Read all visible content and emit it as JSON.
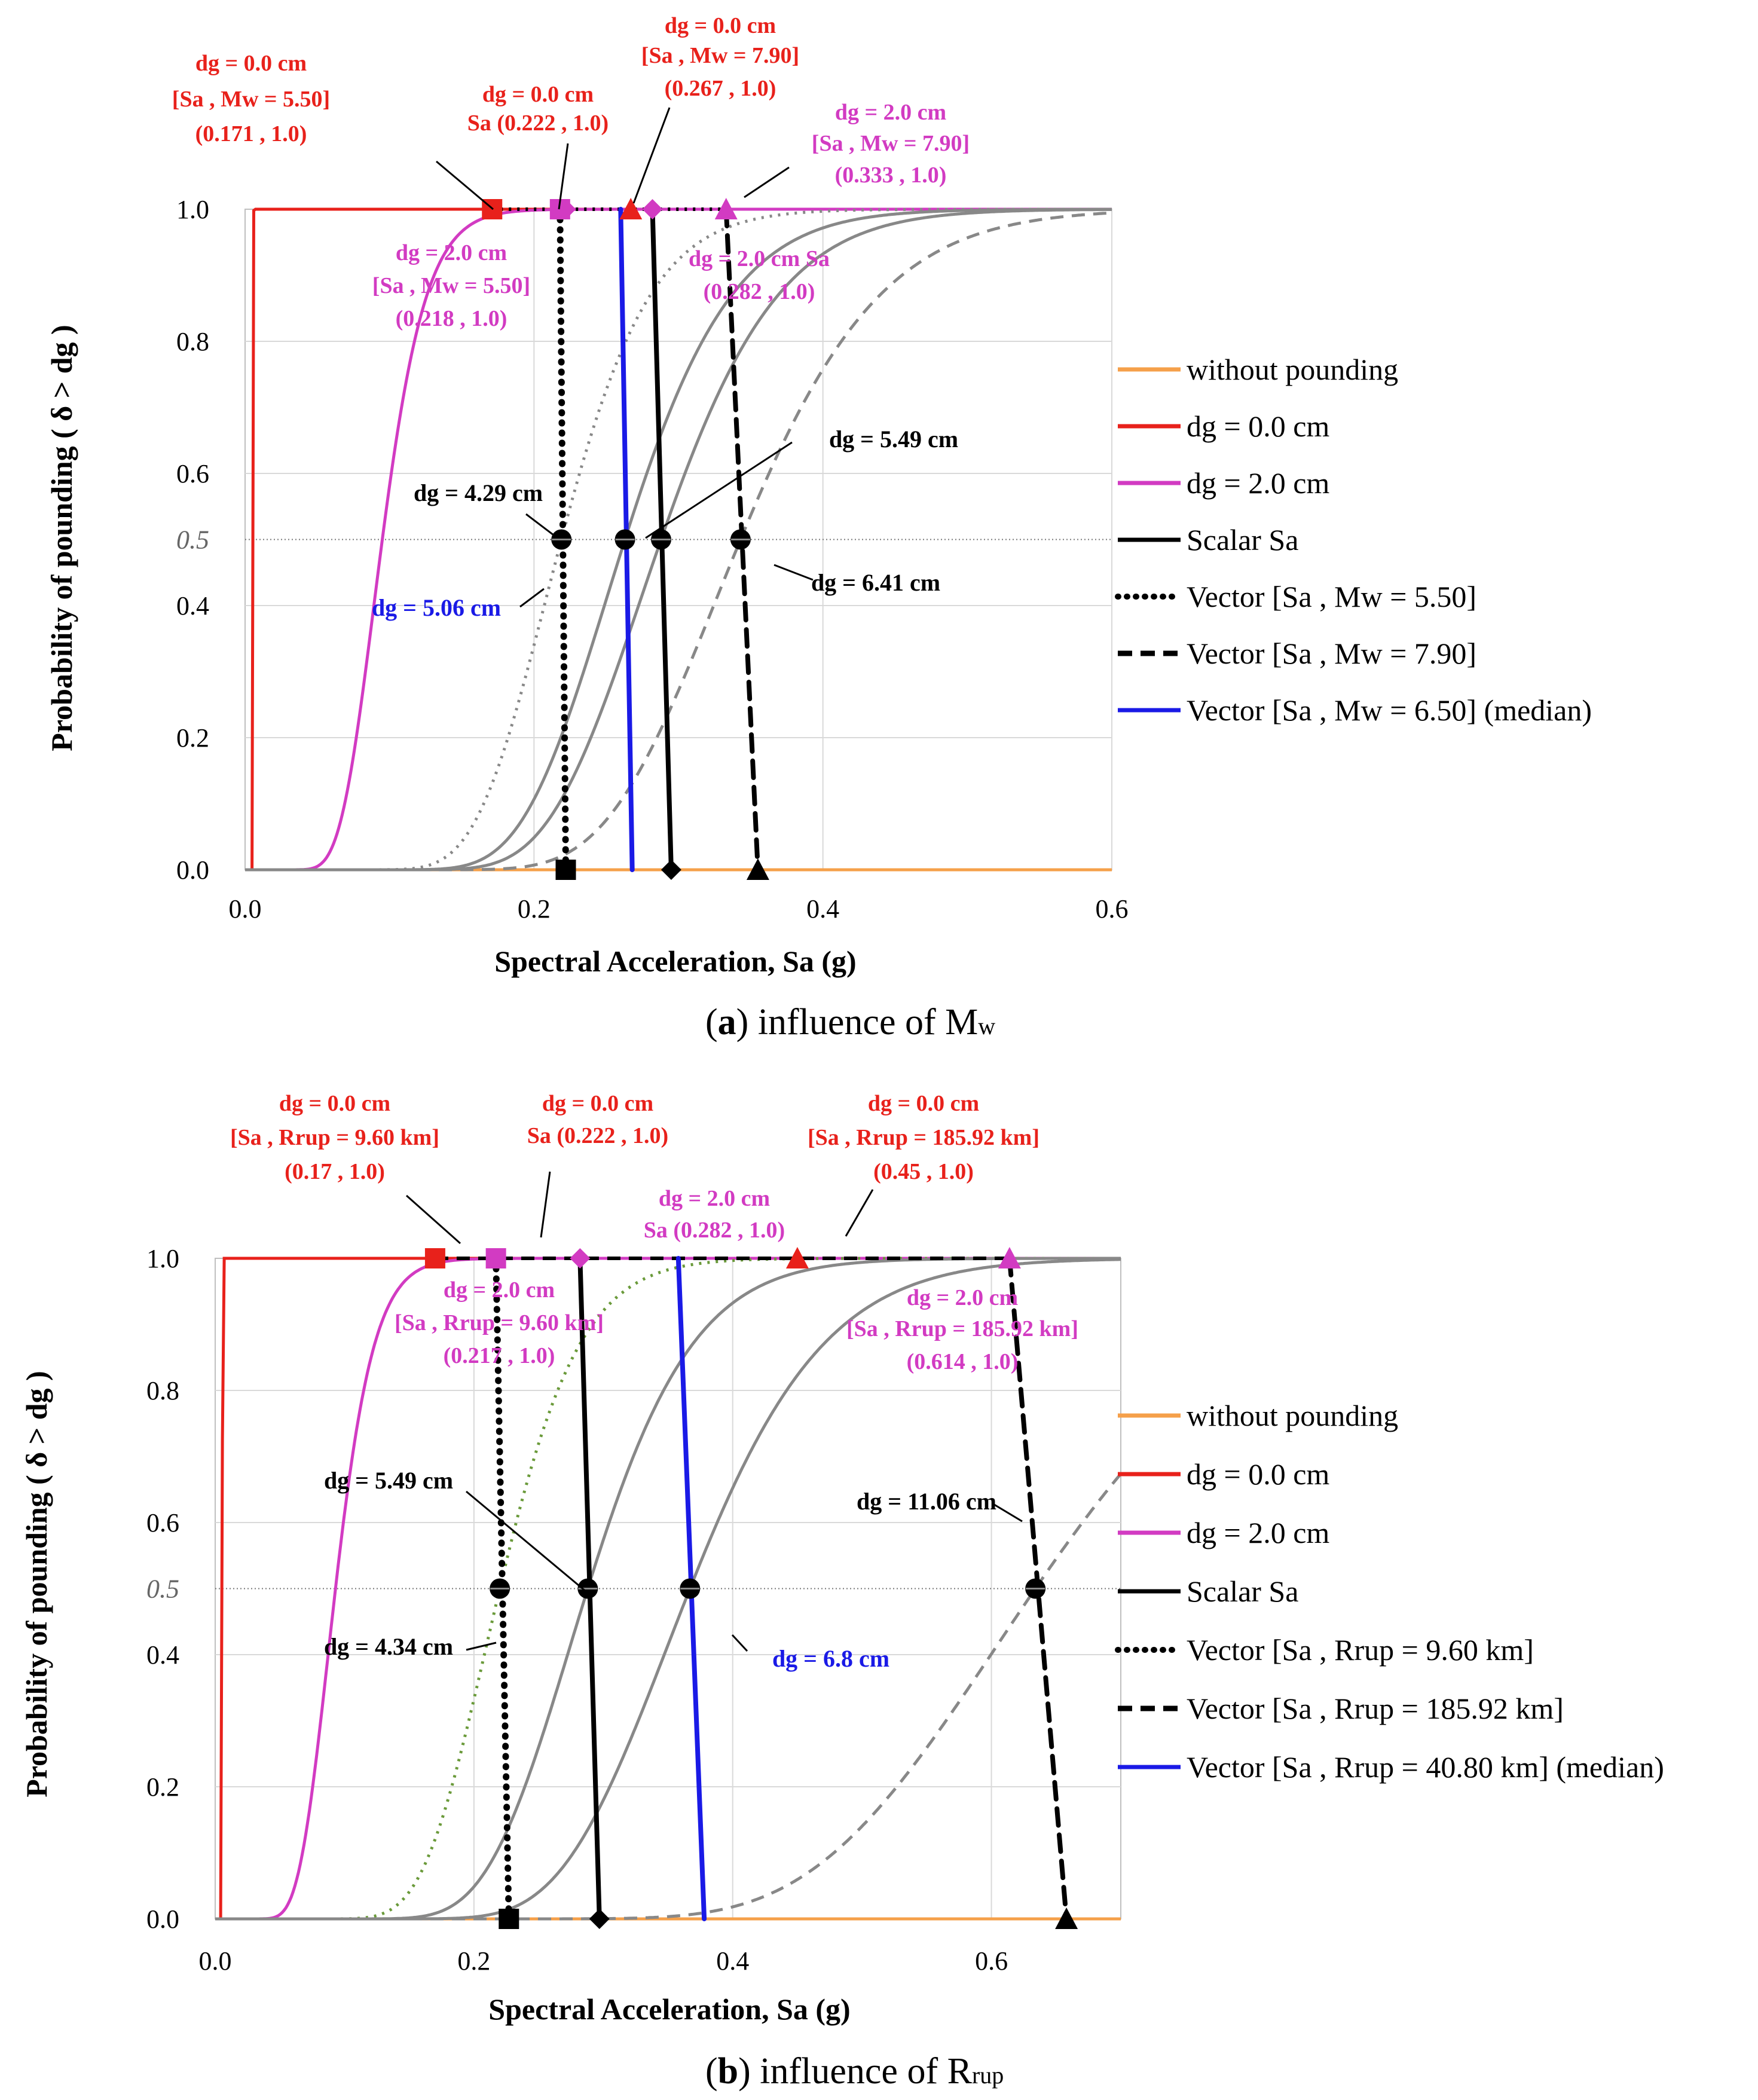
{
  "chart_data": [
    {
      "type": "line",
      "caption_bold": "a",
      "caption_text": "influence of M",
      "caption_sub": "w",
      "xlabel": "Spectral Acceleration, Sa (g)",
      "ylabel": "Probability of pounding ( δ > dg )",
      "xlim": [
        0,
        0.6
      ],
      "ylim": [
        0,
        1
      ],
      "xticks": [
        0,
        0.2,
        0.4,
        0.6
      ],
      "xtick_labels": [
        "0.0",
        "0.2",
        "0.4",
        "0.6"
      ],
      "yticks": [
        0,
        0.2,
        0.4,
        0.5,
        0.6,
        0.8,
        1.0
      ],
      "ytick_labels": [
        "0.0",
        "0.2",
        "0.4",
        "0.5",
        "0.6",
        "0.8",
        "1.0"
      ],
      "grid": true,
      "legend": [
        {
          "label": "without pounding",
          "color": "#f5a04a",
          "dash": "solid"
        },
        {
          "label": " dg = 0.0 cm",
          "color": "#e8211b",
          "dash": "solid"
        },
        {
          "label": "dg = 2.0 cm",
          "color": "#d23bc2",
          "dash": "solid"
        },
        {
          "label": "Scalar Sa",
          "color": "#000000",
          "dash": "solid"
        },
        {
          "label": "Vector [Sa , Mw = 5.50]",
          "color": "#000000",
          "dash": "dot"
        },
        {
          "label": "Vector [Sa , Mw = 7.90]",
          "color": "#000000",
          "dash": "dash"
        },
        {
          "label": "Vector [Sa , Mw = 6.50] (median)",
          "color": "#1a1ae6",
          "dash": "solid"
        }
      ],
      "fragility_curves": [
        {
          "name": "without pounding",
          "median": null,
          "color": "#f5a04a",
          "style": "solid",
          "constant": 0
        },
        {
          "name": "dg = 0.0 cm",
          "median": 0.0055,
          "beta": 0.03,
          "color": "#e8211b",
          "style": "solid"
        },
        {
          "name": "dg = 2.0 cm",
          "median": 0.095,
          "beta": 0.25,
          "color": "#d23bc2",
          "style": "solid"
        },
        {
          "name": "Vector [Sa , Mw = 5.50] dg = 4.29 cm",
          "median": 0.219,
          "beta": 0.22,
          "color": "#888888",
          "style": "dot"
        },
        {
          "name": "Vector [Sa , Mw = 6.50] dg = 5.06 cm",
          "median": 0.263,
          "beta": 0.22,
          "color": "#888888",
          "style": "solid"
        },
        {
          "name": "Scalar Sa dg = 5.49 cm",
          "median": 0.288,
          "beta": 0.22,
          "color": "#888888",
          "style": "solid"
        },
        {
          "name": "Vector [Sa , Mw = 7.90] dg = 6.41 cm",
          "median": 0.343,
          "beta": 0.22,
          "color": "#888888",
          "style": "dash"
        }
      ],
      "pounding_lines": [
        {
          "name": "Vector [Sa , Mw = 5.50]",
          "top_x": 0.218,
          "bottom_x": 0.222,
          "color": "#000000",
          "style": "dot",
          "bottom_marker": "square"
        },
        {
          "name": "Vector [Sa , Mw = 6.50] (median)",
          "top_x": 0.26,
          "bottom_x": 0.268,
          "color": "#1a1ae6",
          "style": "solid",
          "bottom_marker": "none"
        },
        {
          "name": "Scalar Sa",
          "top_x": 0.282,
          "bottom_x": 0.295,
          "color": "#000000",
          "style": "solid",
          "bottom_marker": "diamond"
        },
        {
          "name": "Vector [Sa , Mw = 7.90]",
          "top_x": 0.333,
          "bottom_x": 0.355,
          "color": "#000000",
          "style": "dash",
          "bottom_marker": "triangle"
        }
      ],
      "top_line": {
        "x_start": 0.171,
        "x_end": 0.333,
        "color": "#000000",
        "style": "dot"
      },
      "top_markers": [
        {
          "x": 0.171,
          "shape": "square",
          "color": "#e8211b"
        },
        {
          "x": 0.218,
          "shape": "square",
          "color": "#d23bc2"
        },
        {
          "x": 0.222,
          "shape": "diamond",
          "color": "#d23bc2"
        },
        {
          "x": 0.267,
          "shape": "triangle",
          "color": "#e8211b"
        },
        {
          "x": 0.282,
          "shape": "diamond",
          "color": "#d23bc2"
        },
        {
          "x": 0.333,
          "shape": "triangle",
          "color": "#d23bc2"
        }
      ],
      "median_points": [
        {
          "x": 0.219,
          "y": 0.5
        },
        {
          "x": 0.263,
          "y": 0.5
        },
        {
          "x": 0.288,
          "y": 0.5
        },
        {
          "x": 0.343,
          "y": 0.5
        }
      ],
      "annotations": [
        {
          "lines": [
            "dg = 0.0 cm",
            "[Sa , Mw = 5.50]",
            "(0.171 , 1.0)"
          ],
          "color": "#e8211b",
          "anchor": {
            "x": 0.171,
            "y": 1.0
          }
        },
        {
          "lines": [
            "dg = 0.0 cm",
            "Sa   (0.222 , 1.0)"
          ],
          "color": "#e8211b",
          "anchor": {
            "x": 0.222,
            "y": 1.0
          }
        },
        {
          "lines": [
            "dg = 0.0 cm",
            "[Sa , Mw = 7.90]",
            "(0.267 , 1.0)"
          ],
          "color": "#e8211b",
          "anchor": {
            "x": 0.267,
            "y": 1.0
          }
        },
        {
          "lines": [
            "dg = 2.0 cm",
            "[Sa , Mw = 7.90]",
            "(0.333 , 1.0)"
          ],
          "color": "#d23bc2",
          "anchor": {
            "x": 0.333,
            "y": 1.0
          }
        },
        {
          "lines": [
            "dg = 2.0 cm",
            "[Sa , Mw = 5.50]",
            "(0.218 , 1.0)"
          ],
          "color": "#d23bc2",
          "anchor": null
        },
        {
          "lines": [
            "dg = 2.0 cm    Sa",
            "(0.282 , 1.0)"
          ],
          "color": "#d23bc2",
          "anchor": null
        },
        {
          "lines": [
            "dg = 4.29 cm"
          ],
          "color": "#000000",
          "anchor": {
            "x": 0.219,
            "y": 0.5
          }
        },
        {
          "lines": [
            "dg = 5.06 cm"
          ],
          "color": "#1a1ae6",
          "anchor": {
            "x": 0.263,
            "y": 0.5
          }
        },
        {
          "lines": [
            "dg = 5.49 cm"
          ],
          "color": "#000000",
          "anchor": {
            "x": 0.288,
            "y": 0.5
          }
        },
        {
          "lines": [
            "dg = 6.41 cm"
          ],
          "color": "#000000",
          "anchor": {
            "x": 0.343,
            "y": 0.5
          }
        }
      ]
    },
    {
      "type": "line",
      "caption_bold": "b",
      "caption_text": "influence of R",
      "caption_sub": "rup",
      "xlabel": "Spectral Acceleration, Sa (g)",
      "ylabel": "Probability of pounding ( δ > dg )",
      "xlim": [
        0,
        0.7
      ],
      "ylim": [
        0,
        1
      ],
      "xticks": [
        0,
        0.2,
        0.4,
        0.6
      ],
      "xtick_labels": [
        "0.0",
        "0.2",
        "0.4",
        "0.6"
      ],
      "yticks": [
        0,
        0.2,
        0.4,
        0.5,
        0.6,
        0.8,
        1.0
      ],
      "ytick_labels": [
        "0.0",
        "0.2",
        "0.4",
        "0.5",
        "0.6",
        "0.8",
        "1.0"
      ],
      "grid": true,
      "legend": [
        {
          "label": "without pounding",
          "color": "#f5a04a",
          "dash": "solid"
        },
        {
          "label": " dg = 0.0 cm",
          "color": "#e8211b",
          "dash": "solid"
        },
        {
          "label": "dg = 2.0 cm",
          "color": "#d23bc2",
          "dash": "solid"
        },
        {
          "label": "Scalar Sa",
          "color": "#000000",
          "dash": "solid"
        },
        {
          "label": "Vector [Sa , Rrup = 9.60 km]",
          "color": "#000000",
          "dash": "dot"
        },
        {
          "label": "Vector [Sa , Rrup =  185.92 km]",
          "color": "#000000",
          "dash": "dash"
        },
        {
          "label": "Vector [Sa , Rrup =  40.80 km] (median)",
          "color": "#1a1ae6",
          "dash": "solid"
        }
      ],
      "fragility_curves": [
        {
          "name": "without pounding",
          "median": null,
          "color": "#f5a04a",
          "style": "solid",
          "constant": 0
        },
        {
          "name": "dg = 0.0 cm",
          "median": 0.0055,
          "beta": 0.03,
          "color": "#e8211b",
          "style": "solid"
        },
        {
          "name": "dg = 2.0 cm",
          "median": 0.093,
          "beta": 0.25,
          "color": "#d23bc2",
          "style": "solid"
        },
        {
          "name": "Vector [Sa , Rrup = 9.60 km] dg = 4.34 cm",
          "median": 0.22,
          "beta": 0.22,
          "color": "#6a9a3a",
          "style": "dot"
        },
        {
          "name": "Scalar Sa dg = 5.49 cm",
          "median": 0.288,
          "beta": 0.22,
          "color": "#888888",
          "style": "solid"
        },
        {
          "name": "Vector [Sa , Rrup = 40.80 km] dg = 6.8 cm",
          "median": 0.367,
          "beta": 0.22,
          "color": "#888888",
          "style": "solid"
        },
        {
          "name": "Vector [Sa , Rrup = 185.92 km] dg = 11.06 cm",
          "median": 0.634,
          "beta": 0.22,
          "color": "#888888",
          "style": "dash"
        }
      ],
      "pounding_lines": [
        {
          "name": "Vector [Sa , Rrup = 9.60 km]",
          "top_x": 0.217,
          "bottom_x": 0.227,
          "color": "#000000",
          "style": "dot",
          "bottom_marker": "square"
        },
        {
          "name": "Scalar Sa",
          "top_x": 0.282,
          "bottom_x": 0.297,
          "color": "#000000",
          "style": "solid",
          "bottom_marker": "diamond"
        },
        {
          "name": "Vector [Sa , Rrup = 40.80 km] (median)",
          "top_x": 0.358,
          "bottom_x": 0.378,
          "color": "#1a1ae6",
          "style": "solid",
          "bottom_marker": "none"
        },
        {
          "name": "Vector [Sa , Rrup = 185.92 km]",
          "top_x": 0.614,
          "bottom_x": 0.658,
          "color": "#000000",
          "style": "dash",
          "bottom_marker": "triangle"
        }
      ],
      "top_line": {
        "x_start": 0.17,
        "x_end": 0.614,
        "color": "#000000",
        "style": "dash"
      },
      "top_markers": [
        {
          "x": 0.17,
          "shape": "square",
          "color": "#e8211b"
        },
        {
          "x": 0.217,
          "shape": "square",
          "color": "#d23bc2"
        },
        {
          "x": 0.282,
          "shape": "diamond",
          "color": "#d23bc2"
        },
        {
          "x": 0.45,
          "shape": "triangle",
          "color": "#e8211b"
        },
        {
          "x": 0.614,
          "shape": "triangle",
          "color": "#d23bc2"
        }
      ],
      "median_points": [
        {
          "x": 0.22,
          "y": 0.5
        },
        {
          "x": 0.288,
          "y": 0.5
        },
        {
          "x": 0.367,
          "y": 0.5
        },
        {
          "x": 0.634,
          "y": 0.5
        }
      ],
      "annotations": [
        {
          "lines": [
            "dg = 0.0 cm",
            "[Sa , Rrup = 9.60 km]",
            "(0.17 , 1.0)"
          ],
          "color": "#e8211b",
          "anchor": {
            "x": 0.17,
            "y": 1.0
          }
        },
        {
          "lines": [
            "dg = 0.0 cm",
            "Sa   (0.222 , 1.0)"
          ],
          "color": "#e8211b",
          "anchor": {
            "x": 0.222,
            "y": 1.0
          }
        },
        {
          "lines": [
            "dg = 0.0 cm",
            "[Sa , Rrup = 185.92 km]",
            "(0.45 , 1.0)"
          ],
          "color": "#e8211b",
          "anchor": {
            "x": 0.45,
            "y": 1.0
          }
        },
        {
          "lines": [
            "dg = 2.0 cm",
            "Sa   (0.282 , 1.0)"
          ],
          "color": "#d23bc2",
          "anchor": null
        },
        {
          "lines": [
            "dg = 2.0 cm",
            "[Sa , Rrup = 9.60 km]",
            "(0.217 , 1.0)"
          ],
          "color": "#d23bc2",
          "anchor": null
        },
        {
          "lines": [
            "dg = 2.0 cm",
            "[Sa , Rrup = 185.92 km]",
            "(0.614 , 1.0)"
          ],
          "color": "#d23bc2",
          "anchor": null
        },
        {
          "lines": [
            "dg = 5.49 cm"
          ],
          "color": "#000000",
          "anchor": {
            "x": 0.288,
            "y": 0.5
          }
        },
        {
          "lines": [
            "dg = 4.34 cm"
          ],
          "color": "#000000",
          "anchor": {
            "x": 0.22,
            "y": 0.5
          }
        },
        {
          "lines": [
            "dg = 6.8 cm"
          ],
          "color": "#1a1ae6",
          "anchor": {
            "x": 0.367,
            "y": 0.5
          }
        },
        {
          "lines": [
            "dg = 11.06 cm"
          ],
          "color": "#000000",
          "anchor": {
            "x": 0.634,
            "y": 0.5
          }
        }
      ]
    }
  ]
}
